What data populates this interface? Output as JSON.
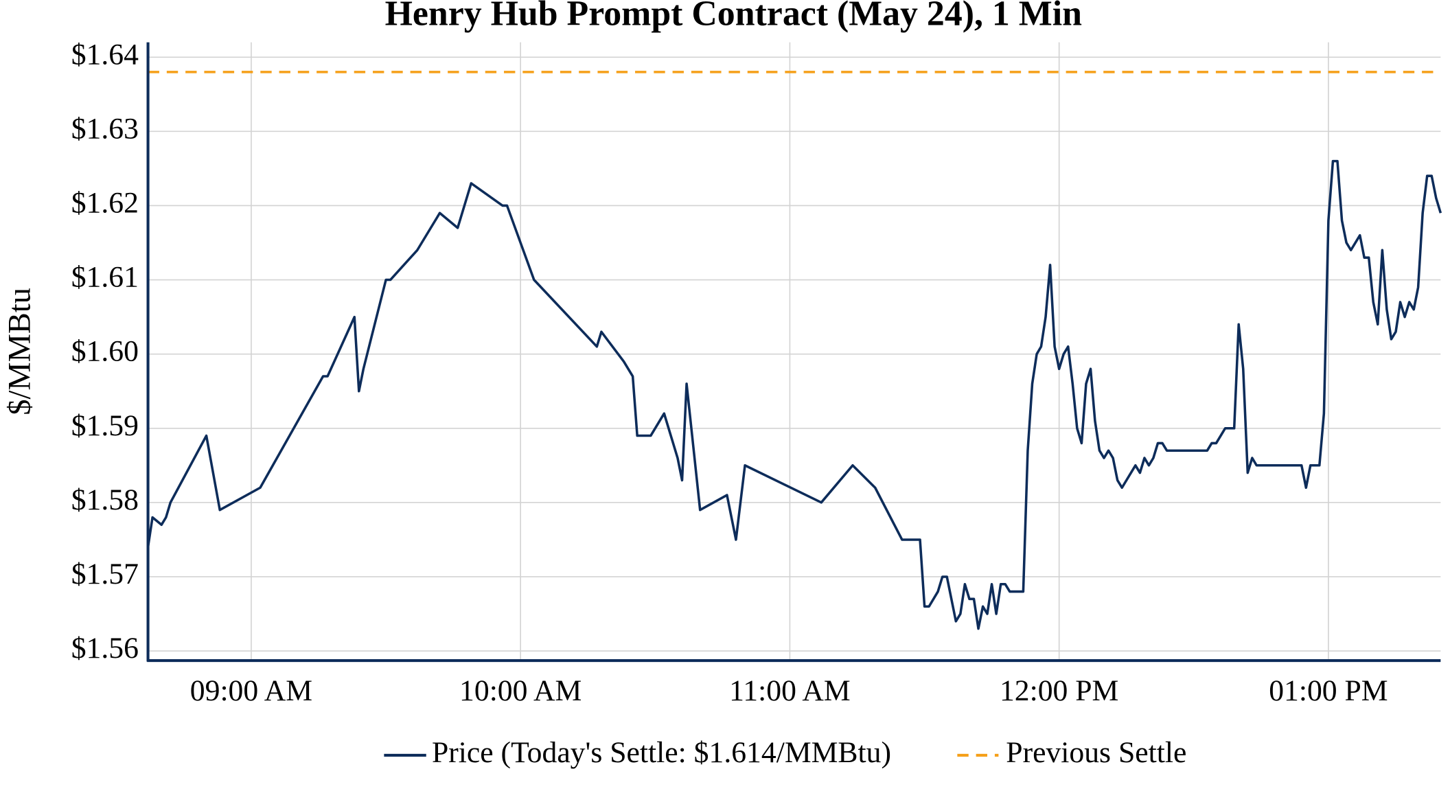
{
  "chart_data": {
    "type": "line",
    "title": "Henry Hub Prompt Contract (May 24), 1 Min",
    "y_label": "$/MMBtu",
    "xlim": [
      "08:37",
      "13:25"
    ],
    "xticks": [
      {
        "value": "09:00",
        "label": "09:00 AM"
      },
      {
        "value": "10:00",
        "label": "10:00 AM"
      },
      {
        "value": "11:00",
        "label": "11:00 AM"
      },
      {
        "value": "12:00",
        "label": "12:00 PM"
      },
      {
        "value": "13:00",
        "label": "01:00 PM"
      }
    ],
    "ylim": [
      1.5587,
      1.642
    ],
    "yticks": [
      {
        "value": 1.56,
        "label": "$1.56"
      },
      {
        "value": 1.57,
        "label": "$1.57"
      },
      {
        "value": 1.58,
        "label": "$1.58"
      },
      {
        "value": 1.59,
        "label": "$1.59"
      },
      {
        "value": 1.6,
        "label": "$1.60"
      },
      {
        "value": 1.61,
        "label": "$1.61"
      },
      {
        "value": 1.62,
        "label": "$1.62"
      },
      {
        "value": 1.63,
        "label": "$1.63"
      },
      {
        "value": 1.64,
        "label": "$1.64"
      }
    ],
    "grid": true,
    "legend": "bottom",
    "x": [
      "08:37",
      "08:38",
      "08:40",
      "08:41",
      "08:42",
      "08:50",
      "08:53",
      "09:02",
      "09:16",
      "09:17",
      "09:23",
      "09:24",
      "09:25",
      "09:30",
      "09:31",
      "09:37",
      "09:42",
      "09:46",
      "09:49",
      "09:56",
      "09:57",
      "10:03",
      "10:17",
      "10:18",
      "10:23",
      "10:25",
      "10:26",
      "10:29",
      "10:32",
      "10:35",
      "10:36",
      "10:37",
      "10:40",
      "10:46",
      "10:48",
      "10:50",
      "11:07",
      "11:14",
      "11:19",
      "11:25",
      "11:29",
      "11:30",
      "11:31",
      "11:33",
      "11:34",
      "11:35",
      "11:37",
      "11:38",
      "11:39",
      "11:40",
      "11:41",
      "11:42",
      "11:43",
      "11:44",
      "11:45",
      "11:46",
      "11:47",
      "11:48",
      "11:49",
      "11:52",
      "11:53",
      "11:54",
      "11:55",
      "11:56",
      "11:57",
      "11:58",
      "11:59",
      "12:00",
      "12:01",
      "12:02",
      "12:03",
      "12:04",
      "12:05",
      "12:06",
      "12:07",
      "12:08",
      "12:09",
      "12:10",
      "12:11",
      "12:12",
      "12:13",
      "12:14",
      "12:17",
      "12:18",
      "12:19",
      "12:20",
      "12:21",
      "12:22",
      "12:23",
      "12:24",
      "12:33",
      "12:34",
      "12:35",
      "12:37",
      "12:39",
      "12:40",
      "12:41",
      "12:42",
      "12:43",
      "12:44",
      "12:54",
      "12:55",
      "12:56",
      "12:58",
      "12:59",
      "13:00",
      "13:01",
      "13:02",
      "13:03",
      "13:04",
      "13:05",
      "13:07",
      "13:08",
      "13:09",
      "13:10",
      "13:11",
      "13:12",
      "13:13",
      "13:14",
      "13:15",
      "13:16",
      "13:17",
      "13:18",
      "13:19",
      "13:20",
      "13:21",
      "13:22",
      "13:23",
      "13:24",
      "13:25"
    ],
    "series": [
      {
        "name": "Price (Today's Settle: $1.614/MMBtu)",
        "color": "#0d2c5a",
        "values": [
          1.574,
          1.578,
          1.577,
          1.578,
          1.58,
          1.589,
          1.579,
          1.582,
          1.597,
          1.597,
          1.605,
          1.595,
          1.598,
          1.61,
          1.61,
          1.614,
          1.619,
          1.617,
          1.623,
          1.62,
          1.62,
          1.61,
          1.601,
          1.603,
          1.599,
          1.597,
          1.589,
          1.589,
          1.592,
          1.586,
          1.583,
          1.596,
          1.579,
          1.581,
          1.575,
          1.585,
          1.58,
          1.585,
          1.582,
          1.575,
          1.575,
          1.566,
          1.566,
          1.568,
          1.57,
          1.57,
          1.564,
          1.565,
          1.569,
          1.567,
          1.567,
          1.563,
          1.566,
          1.565,
          1.569,
          1.565,
          1.569,
          1.569,
          1.568,
          1.568,
          1.587,
          1.596,
          1.6,
          1.601,
          1.605,
          1.612,
          1.601,
          1.598,
          1.6,
          1.601,
          1.596,
          1.59,
          1.588,
          1.596,
          1.598,
          1.591,
          1.587,
          1.586,
          1.587,
          1.586,
          1.583,
          1.582,
          1.585,
          1.584,
          1.586,
          1.585,
          1.586,
          1.588,
          1.588,
          1.587,
          1.587,
          1.588,
          1.588,
          1.59,
          1.59,
          1.604,
          1.598,
          1.584,
          1.586,
          1.585,
          1.585,
          1.582,
          1.585,
          1.585,
          1.592,
          1.618,
          1.626,
          1.626,
          1.618,
          1.615,
          1.614,
          1.616,
          1.613,
          1.613,
          1.607,
          1.604,
          1.614,
          1.606,
          1.602,
          1.603,
          1.607,
          1.605,
          1.607,
          1.606,
          1.609,
          1.619,
          1.624,
          1.624,
          1.621,
          1.619
        ]
      }
    ],
    "hlines": [
      {
        "name": "Previous Settle",
        "color": "#f5a01a",
        "value": 1.638,
        "dashed": true
      }
    ]
  }
}
